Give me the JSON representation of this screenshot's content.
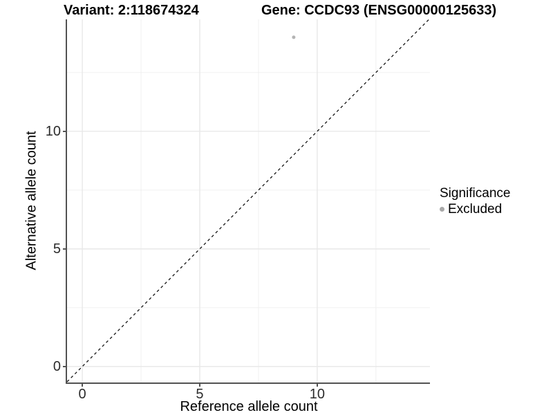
{
  "figure": {
    "title_left": "Variant: 2:118674324",
    "title_right": "Gene: CCDC93 (ENSG00000125633)"
  },
  "legend": {
    "title": "Significance",
    "items": [
      {
        "label": "Excluded",
        "color": "#a9a9a9",
        "shape": "circle"
      }
    ]
  },
  "chart_data": {
    "type": "scatter",
    "title_left": "Variant: 2:118674324",
    "title_right": "Gene: CCDC93 (ENSG00000125633)",
    "xlabel": "Reference allele count",
    "ylabel": "Alternative allele count",
    "series": [
      {
        "name": "Excluded",
        "color": "#b4b4b4",
        "points": [
          {
            "x": 9,
            "y": 14
          }
        ]
      }
    ],
    "reference_line": {
      "kind": "identity",
      "slope": 1,
      "intercept": 0,
      "style": "dashed",
      "color": "#141414"
    },
    "xlim": [
      -0.65,
      14.8
    ],
    "ylim": [
      -0.68,
      14.76
    ],
    "x_ticks": [
      0,
      5,
      10
    ],
    "y_ticks": [
      0,
      5,
      10
    ],
    "x_minor_ticks": [
      2.5,
      7.5,
      12.5
    ],
    "y_minor_ticks": [
      2.5,
      7.5,
      12.5
    ],
    "grid": true,
    "legend_position": "right",
    "legend_title": "Significance",
    "point_radius_px": 2.5,
    "background": "#ffffff"
  }
}
